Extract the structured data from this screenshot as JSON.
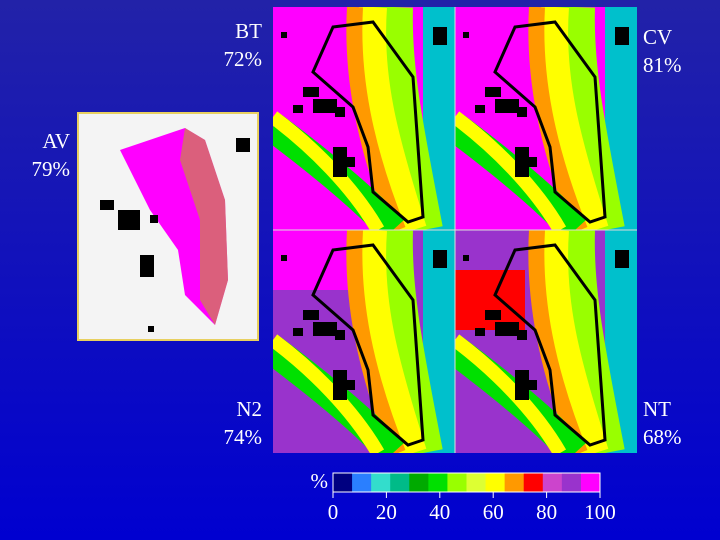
{
  "panels": [
    {
      "label": "BT",
      "percent": "72%"
    },
    {
      "label": "CV",
      "percent": "81%"
    },
    {
      "label": "AV",
      "percent": "79%"
    },
    {
      "label": "N2",
      "percent": "74%"
    },
    {
      "label": "NT",
      "percent": "68%"
    }
  ],
  "colorbar": {
    "unit": "%",
    "ticks": [
      0,
      20,
      40,
      60,
      80,
      100
    ],
    "colors": [
      "#000080",
      "#2a7fff",
      "#33ddcc",
      "#00bb88",
      "#00aa00",
      "#00e000",
      "#99ff00",
      "#ddff33",
      "#ffff00",
      "#ff9900",
      "#ff0000",
      "#cc44cc",
      "#9933cc",
      "#ff00ff"
    ]
  }
}
